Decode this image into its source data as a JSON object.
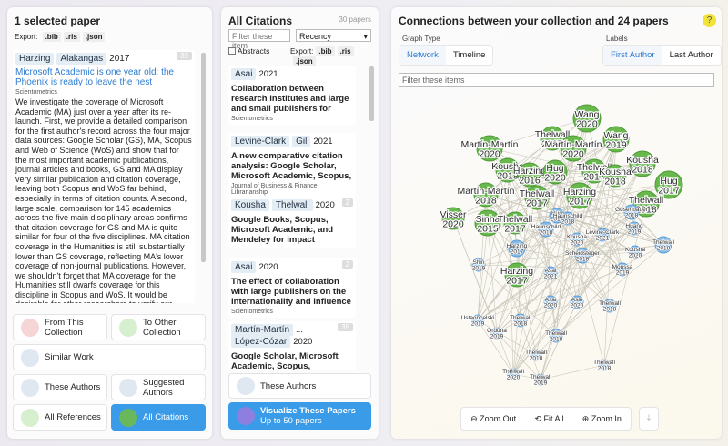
{
  "left": {
    "title": "1 selected paper",
    "export_label": "Export:",
    "export_formats": [
      ".bib",
      ".ris",
      ".json"
    ],
    "paper": {
      "authors": [
        "Harzing",
        "Alakangas"
      ],
      "year": "2017",
      "badge": "39",
      "title": "Microsoft Academic is one year old: the Phoenix is ready to leave the nest",
      "journal": "Scientometrics",
      "abstract": "We investigate the coverage of Microsoft Academic (MA) just over a year after its re-launch. First, we provide a detailed comparison for the first author's record across the four major data sources: Google Scholar (GS), MA, Scopus and Web of Science (WoS) and show that for the most important academic publications, journal articles and books, GS and MA display very similar publication and citation coverage, leaving both Scopus and WoS far behind, especially in terms of citation counts. A second, large scale, comparison for 145 academics across the five main disciplinary areas confirms that citation coverage for GS and MA is quite similar for four of the five disciplines. MA citation coverage in the Humanities is still substantially lower than GS coverage, reflecting MA's lower coverage of non-journal publications. However, we shouldn't forget that MA coverage for the Humanities still dwarfs coverage for this discipline in Scopus and WoS. It would be desirable for other researchers to verify our findings with different samples before drawing a definitive conclusion about MA coverage. However, based on our current findings we suggest that, only one year after its re-launch, MA is rapidly becoming the data source of choice; it"
    },
    "buttons": [
      "From This Collection",
      "To Other Collection",
      "Similar Work",
      "These Authors",
      "Suggested Authors",
      "All References",
      "All Citations"
    ]
  },
  "middle": {
    "title": "All Citations",
    "count": "30 papers",
    "filter_placeholder": "Filter these item",
    "sort": "Recency",
    "abstracts_label": "Abstracts",
    "export_label": "Export:",
    "export_formats": [
      ".bib",
      ".ris",
      ".json"
    ],
    "papers": [
      {
        "authors": [
          "Asai"
        ],
        "year": "2021",
        "title": "Collaboration between research institutes and large and small publishers for publishing open",
        "journal": "Scientometrics"
      },
      {
        "authors": [
          "Levine-Clark",
          "Gil"
        ],
        "year": "2021",
        "title": "A new comparative citation analysis: Google Scholar, Microsoft Academic, Scopus, and",
        "journal": "Journal of Business & Finance Librarianship"
      },
      {
        "authors": [
          "Kousha",
          "Thelwall"
        ],
        "year": "2020",
        "badge": "2",
        "title": "Google Books, Scopus, Microsoft Academic, and Mendeley for impact assessment of doctoral"
      },
      {
        "authors": [
          "Asai"
        ],
        "year": "2020",
        "badge": "2",
        "title": "The effect of collaboration with large publishers on the internationality and influence of",
        "journal": "Scientometrics"
      },
      {
        "authors": [
          "Martín-Martín",
          "López-Cózar"
        ],
        "separator": "...",
        "year": "2020",
        "badge": "35",
        "title": "Google Scholar, Microsoft Academic, Scopus, Dimensions,"
      }
    ],
    "buttons": [
      "These Authors",
      "Visualize These Papers"
    ],
    "button_sub": "Up to 50 papers"
  },
  "right": {
    "title": "Connections between your collection and 24 papers",
    "help": "?",
    "graph_type_label": "Graph Type",
    "graph_types": [
      "Network",
      "Timeline"
    ],
    "labels_label": "Labels",
    "label_options": [
      "First Author",
      "Last Author"
    ],
    "filter_placeholder": "Filter these items",
    "zoom": [
      "Zoom Out",
      "Fit All",
      "Zoom In"
    ],
    "nodes": [
      {
        "name": "Wang",
        "year": "2020"
      },
      {
        "name": "Thelwall",
        "year": "2017"
      },
      {
        "name": "Wang",
        "year": "2019"
      },
      {
        "name": "Martín-Martín",
        "year": "2020"
      },
      {
        "name": "Martín-Martín",
        "year": "2020"
      },
      {
        "name": "Kousha",
        "year": "2019"
      },
      {
        "name": "Harzing",
        "year": "2016"
      },
      {
        "name": "Hug",
        "year": "2020"
      },
      {
        "name": "Thelwall",
        "year": "2017"
      },
      {
        "name": "Kousha",
        "year": "2018"
      },
      {
        "name": "Kousha",
        "year": "2018"
      },
      {
        "name": "Hug",
        "year": "2017"
      },
      {
        "name": "Martín-Martín",
        "year": "2018"
      },
      {
        "name": "Thelwall",
        "year": "2017"
      },
      {
        "name": "Harzing",
        "year": "2017"
      },
      {
        "name": "Thelwall",
        "year": "2018"
      },
      {
        "name": "Visser",
        "year": "2020"
      },
      {
        "name": "Sinha",
        "year": "2015"
      },
      {
        "name": "Thelwall",
        "year": "2017"
      },
      {
        "name": "Harzing",
        "year": "2017"
      },
      {
        "name": "Hug",
        "year": "2018"
      },
      {
        "name": "Gusenbauer",
        "year": "2018"
      },
      {
        "name": "Haunschild",
        "year": "2018"
      },
      {
        "name": "Haunschild",
        "year": "2018"
      },
      {
        "name": "Huang",
        "year": "2019"
      },
      {
        "name": "Levine-Clark",
        "year": "2021"
      },
      {
        "name": "Kousha",
        "year": "2020"
      },
      {
        "name": "Thelwall",
        "year": "2018"
      },
      {
        "name": "Harzing",
        "year": "2017"
      },
      {
        "name": "Kousha",
        "year": "2020"
      },
      {
        "name": "Scheidsteger",
        "year": "2018"
      },
      {
        "name": "Shin",
        "year": "2019"
      },
      {
        "name": "Moussa",
        "year": "2019"
      },
      {
        "name": "Asai",
        "year": "2021"
      },
      {
        "name": "Asai",
        "year": "2020"
      },
      {
        "name": "Asai",
        "year": "2020"
      },
      {
        "name": "Thelwall",
        "year": "2018"
      },
      {
        "name": "Ustaoncelski",
        "year": "2019"
      },
      {
        "name": "Orduna",
        "year": "2019"
      },
      {
        "name": "Thelwall",
        "year": "2018"
      },
      {
        "name": "Thelwall",
        "year": "2018"
      },
      {
        "name": "Thelwall",
        "year": "2018"
      },
      {
        "name": "Thelwall",
        "year": "2020"
      },
      {
        "name": "Thelwall",
        "year": "2019"
      },
      {
        "name": "Thelwall",
        "year": "2018"
      }
    ]
  }
}
